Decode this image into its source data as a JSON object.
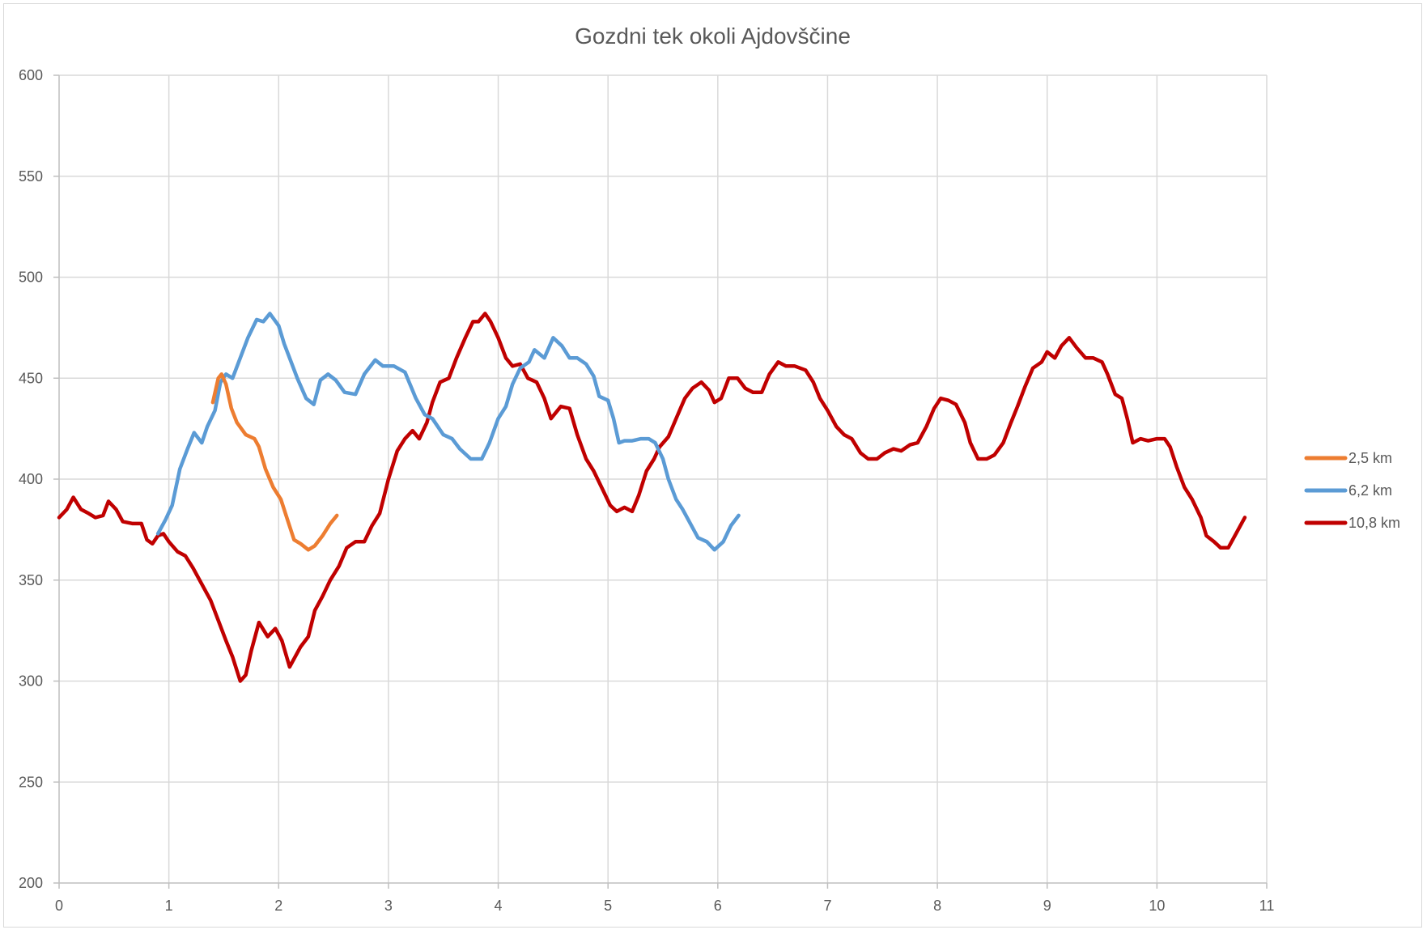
{
  "chart_data": {
    "type": "line",
    "title": "Gozdni tek okoli Ajdovščine",
    "xlabel": "",
    "ylabel": "",
    "xlim": [
      0,
      11
    ],
    "ylim": [
      200,
      600
    ],
    "x_ticks": [
      "0",
      "1",
      "2",
      "3",
      "4",
      "5",
      "6",
      "7",
      "8",
      "9",
      "10",
      "11"
    ],
    "y_ticks": [
      "200",
      "250",
      "300",
      "350",
      "400",
      "450",
      "500",
      "550",
      "600"
    ],
    "grid": true,
    "legend_position": "right",
    "series": [
      {
        "name": "2,5 km",
        "color": "#ed7d31",
        "points": [
          [
            1.4,
            438
          ],
          [
            1.45,
            450
          ],
          [
            1.48,
            452
          ],
          [
            1.52,
            447
          ],
          [
            1.57,
            435
          ],
          [
            1.62,
            428
          ],
          [
            1.7,
            422
          ],
          [
            1.78,
            420
          ],
          [
            1.82,
            416
          ],
          [
            1.88,
            405
          ],
          [
            1.95,
            396
          ],
          [
            2.02,
            390
          ],
          [
            2.08,
            380
          ],
          [
            2.14,
            370
          ],
          [
            2.2,
            368
          ],
          [
            2.27,
            365
          ],
          [
            2.33,
            367
          ],
          [
            2.4,
            372
          ],
          [
            2.47,
            378
          ],
          [
            2.53,
            382
          ]
        ]
      },
      {
        "name": "6,2 km",
        "color": "#5b9bd5",
        "points": [
          [
            0.9,
            373
          ],
          [
            0.97,
            380
          ],
          [
            1.03,
            387
          ],
          [
            1.1,
            405
          ],
          [
            1.17,
            415
          ],
          [
            1.23,
            423
          ],
          [
            1.3,
            418
          ],
          [
            1.35,
            426
          ],
          [
            1.42,
            434
          ],
          [
            1.47,
            448
          ],
          [
            1.52,
            452
          ],
          [
            1.58,
            450
          ],
          [
            1.65,
            460
          ],
          [
            1.72,
            470
          ],
          [
            1.8,
            479
          ],
          [
            1.86,
            478
          ],
          [
            1.92,
            482
          ],
          [
            2.0,
            476
          ],
          [
            2.05,
            467
          ],
          [
            2.1,
            460
          ],
          [
            2.17,
            450
          ],
          [
            2.25,
            440
          ],
          [
            2.32,
            437
          ],
          [
            2.38,
            449
          ],
          [
            2.45,
            452
          ],
          [
            2.52,
            449
          ],
          [
            2.6,
            443
          ],
          [
            2.7,
            442
          ],
          [
            2.78,
            452
          ],
          [
            2.88,
            459
          ],
          [
            2.95,
            456
          ],
          [
            3.05,
            456
          ],
          [
            3.15,
            453
          ],
          [
            3.25,
            440
          ],
          [
            3.33,
            432
          ],
          [
            3.4,
            430
          ],
          [
            3.5,
            422
          ],
          [
            3.58,
            420
          ],
          [
            3.65,
            415
          ],
          [
            3.75,
            410
          ],
          [
            3.85,
            410
          ],
          [
            3.92,
            418
          ],
          [
            4.0,
            430
          ],
          [
            4.07,
            436
          ],
          [
            4.13,
            447
          ],
          [
            4.2,
            455
          ],
          [
            4.28,
            458
          ],
          [
            4.33,
            464
          ],
          [
            4.42,
            460
          ],
          [
            4.5,
            470
          ],
          [
            4.58,
            466
          ],
          [
            4.65,
            460
          ],
          [
            4.72,
            460
          ],
          [
            4.8,
            457
          ],
          [
            4.87,
            451
          ],
          [
            4.92,
            441
          ],
          [
            5.0,
            439
          ],
          [
            5.05,
            430
          ],
          [
            5.1,
            418
          ],
          [
            5.15,
            419
          ],
          [
            5.22,
            419
          ],
          [
            5.3,
            420
          ],
          [
            5.37,
            420
          ],
          [
            5.43,
            418
          ],
          [
            5.5,
            410
          ],
          [
            5.55,
            400
          ],
          [
            5.62,
            390
          ],
          [
            5.68,
            385
          ],
          [
            5.75,
            378
          ],
          [
            5.82,
            371
          ],
          [
            5.9,
            369
          ],
          [
            5.97,
            365
          ],
          [
            6.05,
            369
          ],
          [
            6.12,
            377
          ],
          [
            6.19,
            382
          ]
        ]
      },
      {
        "name": "10,8 km",
        "color": "#c00000",
        "points": [
          [
            0.0,
            381
          ],
          [
            0.07,
            385
          ],
          [
            0.13,
            391
          ],
          [
            0.2,
            385
          ],
          [
            0.27,
            383
          ],
          [
            0.33,
            381
          ],
          [
            0.4,
            382
          ],
          [
            0.45,
            389
          ],
          [
            0.52,
            385
          ],
          [
            0.58,
            379
          ],
          [
            0.67,
            378
          ],
          [
            0.75,
            378
          ],
          [
            0.8,
            370
          ],
          [
            0.85,
            368
          ],
          [
            0.9,
            372
          ],
          [
            0.95,
            373
          ],
          [
            1.0,
            369
          ],
          [
            1.08,
            364
          ],
          [
            1.15,
            362
          ],
          [
            1.22,
            356
          ],
          [
            1.3,
            348
          ],
          [
            1.38,
            340
          ],
          [
            1.45,
            330
          ],
          [
            1.52,
            320
          ],
          [
            1.58,
            312
          ],
          [
            1.65,
            300
          ],
          [
            1.7,
            303
          ],
          [
            1.75,
            315
          ],
          [
            1.82,
            329
          ],
          [
            1.9,
            322
          ],
          [
            1.97,
            326
          ],
          [
            2.03,
            320
          ],
          [
            2.1,
            307
          ],
          [
            2.15,
            312
          ],
          [
            2.2,
            317
          ],
          [
            2.27,
            322
          ],
          [
            2.33,
            335
          ],
          [
            2.4,
            342
          ],
          [
            2.47,
            350
          ],
          [
            2.55,
            357
          ],
          [
            2.62,
            366
          ],
          [
            2.7,
            369
          ],
          [
            2.78,
            369
          ],
          [
            2.85,
            377
          ],
          [
            2.92,
            383
          ],
          [
            3.0,
            400
          ],
          [
            3.08,
            414
          ],
          [
            3.15,
            420
          ],
          [
            3.22,
            424
          ],
          [
            3.28,
            420
          ],
          [
            3.35,
            428
          ],
          [
            3.4,
            438
          ],
          [
            3.47,
            448
          ],
          [
            3.55,
            450
          ],
          [
            3.62,
            460
          ],
          [
            3.7,
            470
          ],
          [
            3.77,
            478
          ],
          [
            3.82,
            478
          ],
          [
            3.88,
            482
          ],
          [
            3.93,
            478
          ],
          [
            4.0,
            470
          ],
          [
            4.07,
            460
          ],
          [
            4.13,
            456
          ],
          [
            4.2,
            457
          ],
          [
            4.27,
            450
          ],
          [
            4.35,
            448
          ],
          [
            4.42,
            440
          ],
          [
            4.48,
            430
          ],
          [
            4.57,
            436
          ],
          [
            4.65,
            435
          ],
          [
            4.72,
            422
          ],
          [
            4.8,
            410
          ],
          [
            4.87,
            404
          ],
          [
            4.95,
            395
          ],
          [
            5.02,
            387
          ],
          [
            5.08,
            384
          ],
          [
            5.15,
            386
          ],
          [
            5.22,
            384
          ],
          [
            5.28,
            392
          ],
          [
            5.35,
            404
          ],
          [
            5.42,
            410
          ],
          [
            5.47,
            416
          ],
          [
            5.55,
            421
          ],
          [
            5.62,
            430
          ],
          [
            5.7,
            440
          ],
          [
            5.77,
            445
          ],
          [
            5.85,
            448
          ],
          [
            5.92,
            444
          ],
          [
            5.97,
            438
          ],
          [
            6.03,
            440
          ],
          [
            6.1,
            450
          ],
          [
            6.18,
            450
          ],
          [
            6.25,
            445
          ],
          [
            6.32,
            443
          ],
          [
            6.4,
            443
          ],
          [
            6.47,
            452
          ],
          [
            6.55,
            458
          ],
          [
            6.62,
            456
          ],
          [
            6.7,
            456
          ],
          [
            6.8,
            454
          ],
          [
            6.87,
            448
          ],
          [
            6.93,
            440
          ],
          [
            7.0,
            434
          ],
          [
            7.08,
            426
          ],
          [
            7.15,
            422
          ],
          [
            7.22,
            420
          ],
          [
            7.3,
            413
          ],
          [
            7.37,
            410
          ],
          [
            7.45,
            410
          ],
          [
            7.52,
            413
          ],
          [
            7.6,
            415
          ],
          [
            7.67,
            414
          ],
          [
            7.75,
            417
          ],
          [
            7.82,
            418
          ],
          [
            7.9,
            426
          ],
          [
            7.97,
            435
          ],
          [
            8.03,
            440
          ],
          [
            8.1,
            439
          ],
          [
            8.17,
            437
          ],
          [
            8.25,
            428
          ],
          [
            8.3,
            418
          ],
          [
            8.37,
            410
          ],
          [
            8.45,
            410
          ],
          [
            8.52,
            412
          ],
          [
            8.6,
            418
          ],
          [
            8.67,
            428
          ],
          [
            8.73,
            436
          ],
          [
            8.8,
            446
          ],
          [
            8.87,
            455
          ],
          [
            8.95,
            458
          ],
          [
            9.0,
            463
          ],
          [
            9.07,
            460
          ],
          [
            9.13,
            466
          ],
          [
            9.2,
            470
          ],
          [
            9.27,
            465
          ],
          [
            9.35,
            460
          ],
          [
            9.42,
            460
          ],
          [
            9.5,
            458
          ],
          [
            9.55,
            452
          ],
          [
            9.62,
            442
          ],
          [
            9.68,
            440
          ],
          [
            9.73,
            430
          ],
          [
            9.78,
            418
          ],
          [
            9.85,
            420
          ],
          [
            9.92,
            419
          ],
          [
            10.0,
            420
          ],
          [
            10.07,
            420
          ],
          [
            10.12,
            416
          ],
          [
            10.18,
            406
          ],
          [
            10.25,
            396
          ],
          [
            10.32,
            390
          ],
          [
            10.4,
            381
          ],
          [
            10.45,
            372
          ],
          [
            10.52,
            369
          ],
          [
            10.58,
            366
          ],
          [
            10.65,
            366
          ],
          [
            10.72,
            373
          ],
          [
            10.8,
            381
          ]
        ]
      }
    ]
  }
}
